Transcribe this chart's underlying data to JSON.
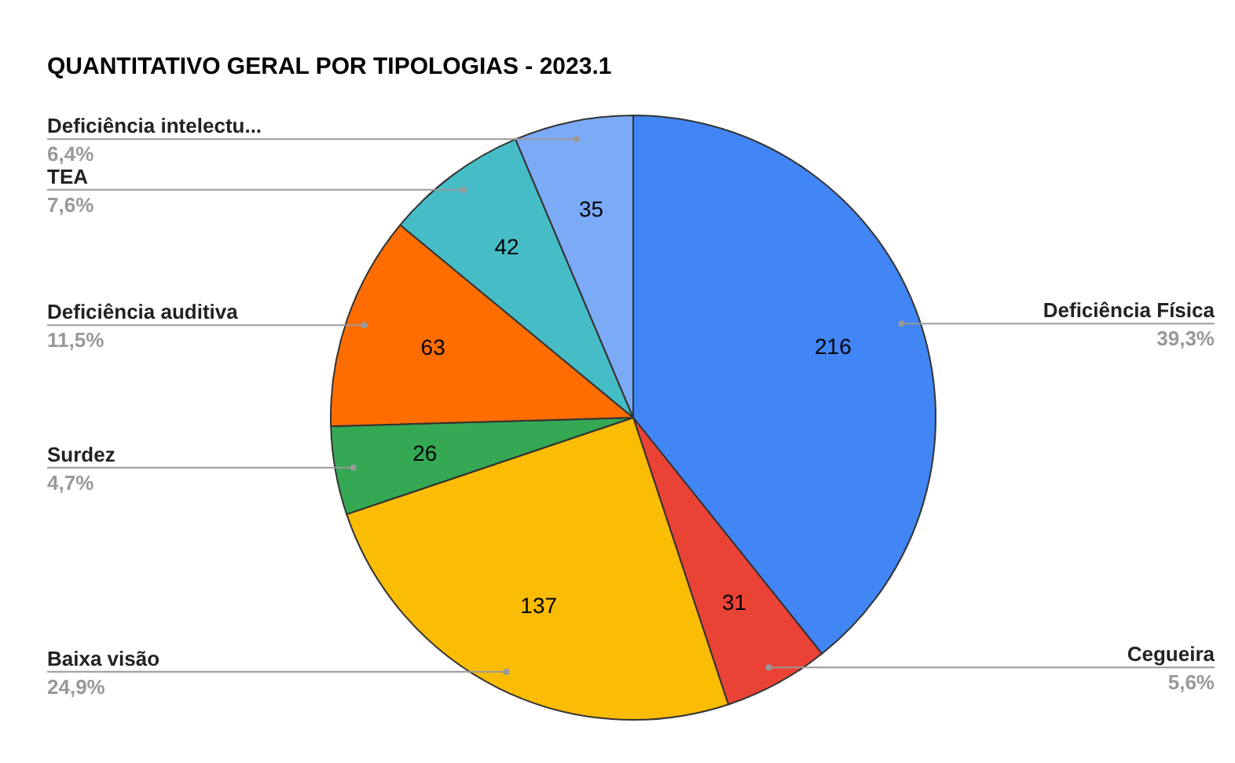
{
  "chart_data": {
    "type": "pie",
    "title": "QUANTITATIVO GERAL POR TIPOLOGIAS - 2023.1",
    "categories": [
      "Deficiência Física",
      "Cegueira",
      "Baixa visão",
      "Surdez",
      "Deficiência auditiva",
      "TEA",
      "Deficiência intelectu..."
    ],
    "values": [
      216,
      31,
      137,
      26,
      63,
      42,
      35
    ],
    "colors": [
      "#4285f4",
      "#ea4335",
      "#fbbc04",
      "#34a853",
      "#ff6d01",
      "#46bdc6",
      "#7baaf7"
    ],
    "annotations": [
      "39,3%",
      "5,6%",
      "24,9%",
      "4,7%",
      "11,5%",
      "7,6%",
      "6,4%"
    ],
    "data_labels": true,
    "legend": false
  }
}
